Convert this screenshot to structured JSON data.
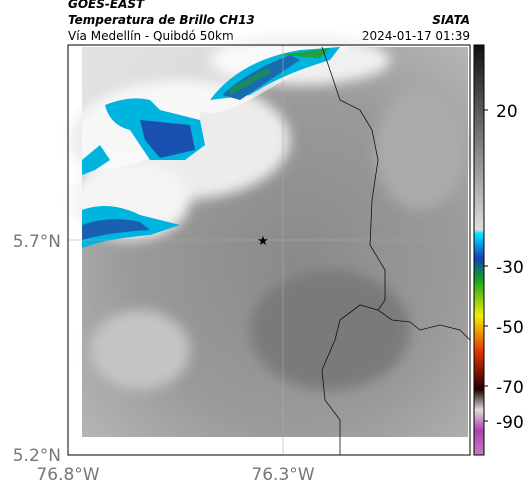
{
  "header": {
    "satellite": "GOES-EAST",
    "product": "Temperatura de Brillo CH13",
    "subtitle": "Vía Medellín - Quibdó 50km",
    "source": "SIATA",
    "timestamp": "2024-01-17 01:39"
  },
  "axes": {
    "lat_labels": [
      "5.7°N",
      "5.2°N"
    ],
    "lon_labels": [
      "76.8°W",
      "76.3°W"
    ]
  },
  "colorbar": {
    "ticks": [
      20,
      -30,
      -50,
      -70,
      -90
    ]
  }
}
